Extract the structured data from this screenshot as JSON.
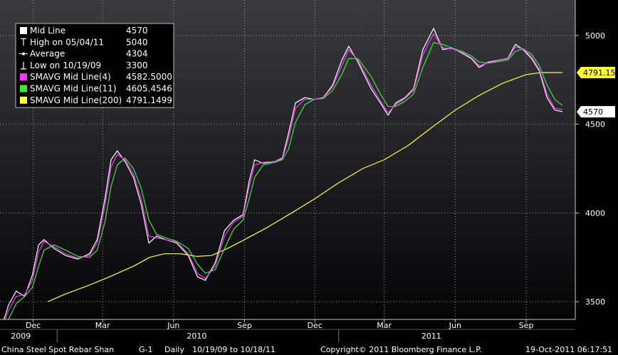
{
  "chart_data": {
    "type": "line",
    "y_range": [
      3400,
      5200
    ],
    "y_ticks": [
      "3500",
      "4000",
      "4500",
      "5000"
    ],
    "y_tick_values": [
      3500,
      4000,
      4500,
      5000
    ],
    "x_month_labels": [
      {
        "label": "Dec",
        "date": "2009-12-01"
      },
      {
        "label": "Mar",
        "date": "2010-03-01"
      },
      {
        "label": "Jun",
        "date": "2010-06-01"
      },
      {
        "label": "Sep",
        "date": "2010-09-01"
      },
      {
        "label": "Dec",
        "date": "2010-12-01"
      },
      {
        "label": "Mar",
        "date": "2011-03-01"
      },
      {
        "label": "Jun",
        "date": "2011-06-01"
      },
      {
        "label": "Sep",
        "date": "2011-09-01"
      }
    ],
    "x_year_labels": [
      {
        "label": "2009",
        "date": "2009-11-15"
      },
      {
        "label": "2010",
        "date": "2010-07-01"
      },
      {
        "label": "2011",
        "date": "2011-05-01"
      }
    ],
    "x_range": [
      "2009-10-19",
      "2011-10-18"
    ],
    "grid": true,
    "legend_position": "top-left",
    "legend": [
      {
        "name": "Mid Line",
        "value": "4570",
        "marker": "box",
        "color": "#ffffff"
      },
      {
        "name": "High on 05/04/11",
        "value": "5040",
        "marker": "high",
        "color": "#ffffff"
      },
      {
        "name": "Average",
        "value": "4304",
        "marker": "avg",
        "color": "#ffffff"
      },
      {
        "name": "Low on 10/19/09",
        "value": "3300",
        "marker": "low",
        "color": "#ffffff"
      },
      {
        "name": "SMAVG Mid Line(4)",
        "value": "4582.5000",
        "marker": "box",
        "color": "#ff33ff"
      },
      {
        "name": "SMAVG Mid Line(11)",
        "value": "4605.4546",
        "marker": "box",
        "color": "#33ee33"
      },
      {
        "name": "SMAVG Mid Line(200)",
        "value": "4791.1499",
        "marker": "box",
        "color": "#ffff33"
      }
    ],
    "tags": [
      {
        "label": "4791.15",
        "value": 4791.15,
        "color": "#ffff33"
      },
      {
        "label": "4570",
        "value": 4570,
        "color": "#ffffff"
      }
    ],
    "series": [
      {
        "name": "Mid Line",
        "color": "#ffffff",
        "points": [
          [
            "2009-10-19",
            3330
          ],
          [
            "2009-10-30",
            3480
          ],
          [
            "2009-11-09",
            3560
          ],
          [
            "2009-11-20",
            3530
          ],
          [
            "2009-11-30",
            3650
          ],
          [
            "2009-12-08",
            3820
          ],
          [
            "2009-12-15",
            3850
          ],
          [
            "2009-12-28",
            3800
          ],
          [
            "2010-01-12",
            3760
          ],
          [
            "2010-01-28",
            3740
          ],
          [
            "2010-02-12",
            3770
          ],
          [
            "2010-02-22",
            3850
          ],
          [
            "2010-03-04",
            4080
          ],
          [
            "2010-03-12",
            4300
          ],
          [
            "2010-03-20",
            4350
          ],
          [
            "2010-03-30",
            4290
          ],
          [
            "2010-04-10",
            4200
          ],
          [
            "2010-04-20",
            4050
          ],
          [
            "2010-04-30",
            3830
          ],
          [
            "2010-05-10",
            3870
          ],
          [
            "2010-05-22",
            3850
          ],
          [
            "2010-06-05",
            3830
          ],
          [
            "2010-06-20",
            3760
          ],
          [
            "2010-07-02",
            3640
          ],
          [
            "2010-07-12",
            3620
          ],
          [
            "2010-07-25",
            3720
          ],
          [
            "2010-08-06",
            3900
          ],
          [
            "2010-08-18",
            3960
          ],
          [
            "2010-08-30",
            3990
          ],
          [
            "2010-09-07",
            4180
          ],
          [
            "2010-09-14",
            4300
          ],
          [
            "2010-09-25",
            4280
          ],
          [
            "2010-10-10",
            4290
          ],
          [
            "2010-10-20",
            4310
          ],
          [
            "2010-10-28",
            4450
          ],
          [
            "2010-11-06",
            4620
          ],
          [
            "2010-11-18",
            4650
          ],
          [
            "2010-11-30",
            4640
          ],
          [
            "2010-12-12",
            4650
          ],
          [
            "2010-12-24",
            4720
          ],
          [
            "2011-01-05",
            4860
          ],
          [
            "2011-01-14",
            4940
          ],
          [
            "2011-01-26",
            4850
          ],
          [
            "2011-02-12",
            4700
          ],
          [
            "2011-02-24",
            4620
          ],
          [
            "2011-03-06",
            4550
          ],
          [
            "2011-03-16",
            4620
          ],
          [
            "2011-03-28",
            4650
          ],
          [
            "2011-04-08",
            4700
          ],
          [
            "2011-04-20",
            4920
          ],
          [
            "2011-05-04",
            5040
          ],
          [
            "2011-05-16",
            4920
          ],
          [
            "2011-05-28",
            4930
          ],
          [
            "2011-06-10",
            4900
          ],
          [
            "2011-06-22",
            4870
          ],
          [
            "2011-07-02",
            4820
          ],
          [
            "2011-07-14",
            4850
          ],
          [
            "2011-07-26",
            4860
          ],
          [
            "2011-08-08",
            4870
          ],
          [
            "2011-08-18",
            4950
          ],
          [
            "2011-08-28",
            4920
          ],
          [
            "2011-09-08",
            4870
          ],
          [
            "2011-09-18",
            4800
          ],
          [
            "2011-09-28",
            4650
          ],
          [
            "2011-10-08",
            4580
          ],
          [
            "2011-10-18",
            4570
          ]
        ]
      },
      {
        "name": "SMAVG Mid Line(4)",
        "color": "#ff33ff",
        "points": [
          [
            "2009-10-19",
            3320
          ],
          [
            "2009-10-30",
            3450
          ],
          [
            "2009-11-09",
            3530
          ],
          [
            "2009-11-20",
            3540
          ],
          [
            "2009-11-30",
            3620
          ],
          [
            "2009-12-08",
            3780
          ],
          [
            "2009-12-15",
            3840
          ],
          [
            "2009-12-28",
            3810
          ],
          [
            "2010-01-12",
            3770
          ],
          [
            "2010-01-28",
            3745
          ],
          [
            "2010-02-12",
            3760
          ],
          [
            "2010-02-22",
            3830
          ],
          [
            "2010-03-04",
            4040
          ],
          [
            "2010-03-12",
            4260
          ],
          [
            "2010-03-20",
            4330
          ],
          [
            "2010-03-30",
            4300
          ],
          [
            "2010-04-10",
            4220
          ],
          [
            "2010-04-20",
            4080
          ],
          [
            "2010-04-30",
            3870
          ],
          [
            "2010-05-10",
            3860
          ],
          [
            "2010-05-22",
            3850
          ],
          [
            "2010-06-05",
            3835
          ],
          [
            "2010-06-20",
            3770
          ],
          [
            "2010-07-02",
            3660
          ],
          [
            "2010-07-12",
            3630
          ],
          [
            "2010-07-25",
            3700
          ],
          [
            "2010-08-06",
            3870
          ],
          [
            "2010-08-18",
            3950
          ],
          [
            "2010-08-30",
            3980
          ],
          [
            "2010-09-07",
            4150
          ],
          [
            "2010-09-14",
            4270
          ],
          [
            "2010-09-25",
            4285
          ],
          [
            "2010-10-10",
            4290
          ],
          [
            "2010-10-20",
            4305
          ],
          [
            "2010-10-28",
            4420
          ],
          [
            "2010-11-06",
            4590
          ],
          [
            "2010-11-18",
            4640
          ],
          [
            "2010-11-30",
            4640
          ],
          [
            "2010-12-12",
            4648
          ],
          [
            "2010-12-24",
            4710
          ],
          [
            "2011-01-05",
            4830
          ],
          [
            "2011-01-14",
            4920
          ],
          [
            "2011-01-26",
            4860
          ],
          [
            "2011-02-12",
            4720
          ],
          [
            "2011-02-24",
            4630
          ],
          [
            "2011-03-06",
            4565
          ],
          [
            "2011-03-16",
            4610
          ],
          [
            "2011-03-28",
            4645
          ],
          [
            "2011-04-08",
            4690
          ],
          [
            "2011-04-20",
            4890
          ],
          [
            "2011-05-04",
            5010
          ],
          [
            "2011-05-16",
            4930
          ],
          [
            "2011-05-28",
            4925
          ],
          [
            "2011-06-10",
            4905
          ],
          [
            "2011-06-22",
            4875
          ],
          [
            "2011-07-02",
            4830
          ],
          [
            "2011-07-14",
            4845
          ],
          [
            "2011-07-26",
            4858
          ],
          [
            "2011-08-08",
            4868
          ],
          [
            "2011-08-18",
            4935
          ],
          [
            "2011-08-28",
            4925
          ],
          [
            "2011-09-08",
            4880
          ],
          [
            "2011-09-18",
            4810
          ],
          [
            "2011-09-28",
            4670
          ],
          [
            "2011-10-08",
            4590
          ],
          [
            "2011-10-18",
            4582.5
          ]
        ]
      },
      {
        "name": "SMAVG Mid Line(11)",
        "color": "#33ee33",
        "points": [
          [
            "2009-10-19",
            3310
          ],
          [
            "2009-10-30",
            3400
          ],
          [
            "2009-11-09",
            3490
          ],
          [
            "2009-11-20",
            3530
          ],
          [
            "2009-11-30",
            3580
          ],
          [
            "2009-12-08",
            3700
          ],
          [
            "2009-12-15",
            3790
          ],
          [
            "2009-12-28",
            3820
          ],
          [
            "2010-01-12",
            3790
          ],
          [
            "2010-01-28",
            3755
          ],
          [
            "2010-02-12",
            3750
          ],
          [
            "2010-02-22",
            3790
          ],
          [
            "2010-03-04",
            3950
          ],
          [
            "2010-03-12",
            4150
          ],
          [
            "2010-03-20",
            4270
          ],
          [
            "2010-03-30",
            4310
          ],
          [
            "2010-04-10",
            4250
          ],
          [
            "2010-04-20",
            4140
          ],
          [
            "2010-04-30",
            3960
          ],
          [
            "2010-05-10",
            3880
          ],
          [
            "2010-05-22",
            3860
          ],
          [
            "2010-06-05",
            3840
          ],
          [
            "2010-06-20",
            3800
          ],
          [
            "2010-07-02",
            3710
          ],
          [
            "2010-07-12",
            3660
          ],
          [
            "2010-07-25",
            3680
          ],
          [
            "2010-08-06",
            3800
          ],
          [
            "2010-08-18",
            3910
          ],
          [
            "2010-08-30",
            3960
          ],
          [
            "2010-09-07",
            4080
          ],
          [
            "2010-09-14",
            4200
          ],
          [
            "2010-09-25",
            4270
          ],
          [
            "2010-10-10",
            4285
          ],
          [
            "2010-10-20",
            4300
          ],
          [
            "2010-10-28",
            4360
          ],
          [
            "2010-11-06",
            4510
          ],
          [
            "2010-11-18",
            4610
          ],
          [
            "2010-11-30",
            4640
          ],
          [
            "2010-12-12",
            4645
          ],
          [
            "2010-12-24",
            4690
          ],
          [
            "2011-01-05",
            4780
          ],
          [
            "2011-01-14",
            4870
          ],
          [
            "2011-01-26",
            4870
          ],
          [
            "2011-02-12",
            4770
          ],
          [
            "2011-02-24",
            4670
          ],
          [
            "2011-03-06",
            4600
          ],
          [
            "2011-03-16",
            4600
          ],
          [
            "2011-03-28",
            4630
          ],
          [
            "2011-04-08",
            4670
          ],
          [
            "2011-04-20",
            4820
          ],
          [
            "2011-05-04",
            4960
          ],
          [
            "2011-05-16",
            4950
          ],
          [
            "2011-05-28",
            4930
          ],
          [
            "2011-06-10",
            4910
          ],
          [
            "2011-06-22",
            4885
          ],
          [
            "2011-07-02",
            4850
          ],
          [
            "2011-07-14",
            4845
          ],
          [
            "2011-07-26",
            4852
          ],
          [
            "2011-08-08",
            4862
          ],
          [
            "2011-08-18",
            4910
          ],
          [
            "2011-08-28",
            4925
          ],
          [
            "2011-09-08",
            4895
          ],
          [
            "2011-09-18",
            4830
          ],
          [
            "2011-09-28",
            4720
          ],
          [
            "2011-10-08",
            4640
          ],
          [
            "2011-10-18",
            4605.45
          ]
        ]
      },
      {
        "name": "SMAVG Mid Line(200)",
        "color": "#ffff33",
        "points": [
          [
            "2009-12-20",
            3500
          ],
          [
            "2010-01-10",
            3540
          ],
          [
            "2010-02-10",
            3590
          ],
          [
            "2010-03-10",
            3640
          ],
          [
            "2010-04-10",
            3700
          ],
          [
            "2010-05-01",
            3750
          ],
          [
            "2010-05-20",
            3770
          ],
          [
            "2010-06-10",
            3770
          ],
          [
            "2010-07-01",
            3755
          ],
          [
            "2010-07-20",
            3760
          ],
          [
            "2010-08-10",
            3800
          ],
          [
            "2010-09-01",
            3850
          ],
          [
            "2010-10-01",
            3920
          ],
          [
            "2010-11-01",
            4000
          ],
          [
            "2010-12-01",
            4080
          ],
          [
            "2011-01-01",
            4170
          ],
          [
            "2011-02-01",
            4250
          ],
          [
            "2011-03-01",
            4300
          ],
          [
            "2011-04-01",
            4380
          ],
          [
            "2011-05-01",
            4480
          ],
          [
            "2011-06-01",
            4580
          ],
          [
            "2011-07-01",
            4660
          ],
          [
            "2011-08-01",
            4730
          ],
          [
            "2011-09-01",
            4780
          ],
          [
            "2011-09-20",
            4791.15
          ],
          [
            "2011-10-18",
            4791.15
          ]
        ]
      }
    ]
  },
  "footer": {
    "title": "China Steel Spot Rebar Shan",
    "code": "G-1",
    "period": "Daily",
    "range": "10/19/09 to 10/18/11",
    "copyright": "Copyright© 2011 Bloomberg Finance L.P.",
    "timestamp": "19-Oct-2011 06:17:51"
  }
}
